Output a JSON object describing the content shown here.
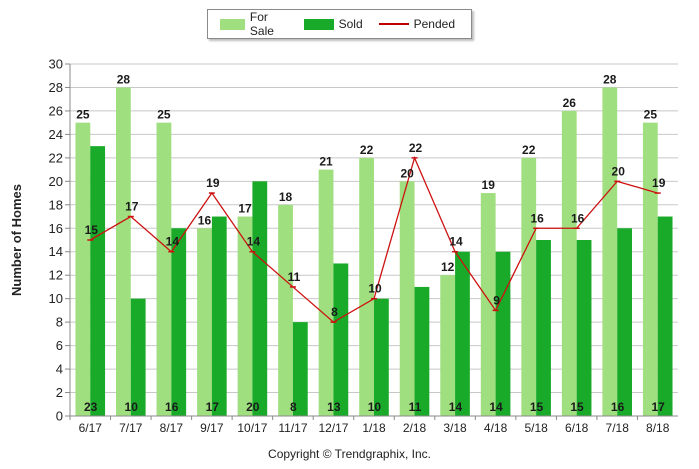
{
  "legend": {
    "for_sale": "For Sale",
    "sold": "Sold",
    "pended": "Pended"
  },
  "copyright": "Copyright © Trendgraphix, Inc.",
  "colors": {
    "for_sale": "#9fdf7f",
    "sold": "#1aaa2a",
    "pended": "#cc1111",
    "grid": "#c8c8c8"
  },
  "chart_data": {
    "type": "bar",
    "categories": [
      "6/17",
      "7/17",
      "8/17",
      "9/17",
      "10/17",
      "11/17",
      "12/17",
      "1/18",
      "2/18",
      "3/18",
      "4/18",
      "5/18",
      "6/18",
      "7/18",
      "8/18"
    ],
    "series": [
      {
        "name": "For Sale",
        "type": "bar",
        "values": [
          25,
          28,
          25,
          16,
          17,
          18,
          21,
          22,
          20,
          12,
          19,
          22,
          26,
          28,
          25
        ]
      },
      {
        "name": "Sold",
        "type": "bar",
        "values": [
          23,
          10,
          16,
          17,
          20,
          8,
          13,
          10,
          11,
          14,
          14,
          15,
          15,
          16,
          17
        ]
      },
      {
        "name": "Pended",
        "type": "line",
        "values": [
          15,
          17,
          14,
          19,
          14,
          11,
          8,
          10,
          22,
          14,
          9,
          16,
          16,
          20,
          19
        ]
      }
    ],
    "ylabel": "Number of Homes",
    "ylim": [
      0,
      30
    ],
    "yticks": [
      0,
      2,
      4,
      6,
      8,
      10,
      12,
      14,
      16,
      18,
      20,
      22,
      24,
      26,
      28,
      30
    ],
    "grid": true,
    "legend_position": "top"
  }
}
